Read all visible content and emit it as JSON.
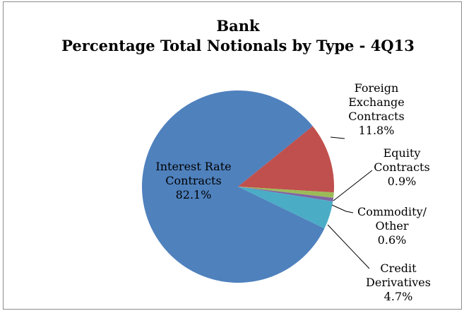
{
  "chart_data": {
    "type": "pie",
    "title": "Bank",
    "subtitle": "Percentage Total Notionals by Type - 4Q13",
    "slices": [
      {
        "label_lines": [
          "Interest Rate",
          "Contracts"
        ],
        "pct_label": "82.1%",
        "value": 82.1,
        "color": "#4f81bd"
      },
      {
        "label_lines": [
          "Foreign",
          "Exchange",
          "Contracts"
        ],
        "pct_label": "11.8%",
        "value": 11.8,
        "color": "#c0504d"
      },
      {
        "label_lines": [
          "Equity",
          "Contracts"
        ],
        "pct_label": "0.9%",
        "value": 0.9,
        "color": "#9bbb59"
      },
      {
        "label_lines": [
          "Commodity/",
          "Other"
        ],
        "pct_label": "0.6%",
        "value": 0.6,
        "color": "#8064a2"
      },
      {
        "label_lines": [
          "Credit",
          "Derivatives"
        ],
        "pct_label": "4.7%",
        "value": 4.7,
        "color": "#4bacc6"
      }
    ],
    "legend": "none"
  }
}
